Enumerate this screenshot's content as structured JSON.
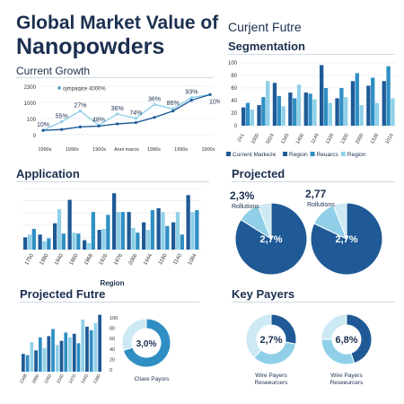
{
  "title_line1": "Global Market Value of",
  "title_line2": "Nanopowders",
  "colors": {
    "dark": "#1f5a96",
    "mid": "#2f8fc4",
    "light": "#8fd0e8",
    "pale": "#cde9f3",
    "text": "#1b2f4f"
  },
  "panels": {
    "current_growth": {
      "heading": "Current Growth"
    },
    "segmentation": {
      "super": "Curjent Futre",
      "heading": "Segmentation"
    },
    "application": {
      "heading": "Application"
    },
    "projected": {
      "heading": "Projected"
    },
    "projected_future": {
      "heading": "Projected Futre"
    },
    "key_payers": {
      "heading": "Key Payers"
    }
  },
  "chart_data": [
    {
      "id": "growth",
      "type": "line",
      "legend": "ojmpaqice 4000%",
      "yticks": [
        "2300",
        "1000",
        "100",
        "0"
      ],
      "xticks": [
        "1990s",
        "1990s",
        "1900s",
        "Anni maros",
        "1990s",
        "1990s",
        "1900s"
      ],
      "series": [
        {
          "values": [
            10,
            30,
            55,
            22,
            48,
            38,
            70,
            60,
            86,
            93
          ]
        },
        {
          "values": [
            10,
            12,
            18,
            20,
            25,
            28,
            40,
            55,
            80,
            93
          ]
        }
      ],
      "annotations": [
        "10%",
        "55%",
        "27%",
        "48%",
        "36%",
        "74%",
        "36%",
        "86%",
        "93%",
        "10%"
      ]
    },
    {
      "id": "segmentation",
      "type": "bar",
      "yticks": [
        "100",
        "80",
        "60",
        "40",
        "20",
        "0"
      ],
      "xticks": [
        "2X1",
        "1000",
        "5024",
        "1345",
        "1400",
        "1149",
        "1339",
        "1300",
        "2000",
        "1338",
        "1016"
      ],
      "legend": [
        "Current Markeze",
        "Region",
        "Reuarcs",
        "Region"
      ],
      "series": [
        {
          "values": [
            32,
            36,
            75,
            58,
            58,
            106,
            48,
            78,
            70,
            78
          ]
        },
        {
          "values": [
            40,
            50,
            52,
            48,
            56,
            66,
            66,
            92,
            84,
            104
          ]
        },
        {
          "values": [
            28,
            78,
            34,
            72,
            46,
            40,
            50,
            36,
            40,
            48
          ]
        }
      ]
    },
    {
      "id": "application",
      "type": "bar",
      "xticks": [
        "1750",
        "1980",
        "1940",
        "1860",
        "1968",
        "1926",
        "1976",
        "2066",
        "1444",
        "1180",
        "1140",
        "1084"
      ],
      "xlabel": "Region",
      "series": [
        {
          "values": [
            13,
            16,
            28,
            53,
            10,
            21,
            60,
            40,
            29,
            44,
            29,
            58
          ]
        },
        {
          "values": [
            16,
            9,
            43,
            18,
            7,
            22,
            40,
            23,
            21,
            40,
            40,
            40
          ]
        },
        {
          "values": [
            22,
            12,
            17,
            17,
            40,
            37,
            40,
            18,
            42,
            25,
            16,
            42
          ]
        }
      ]
    },
    {
      "id": "projected_pie1",
      "type": "pie",
      "label_top": "2,3%",
      "label_sub": "Rollutions",
      "center": "2,7%",
      "slices": [
        84,
        10,
        6
      ]
    },
    {
      "id": "projected_pie2",
      "type": "pie",
      "label_top": "2,77",
      "label_sub": "Rollutions",
      "center": "2,7%",
      "slices": [
        82,
        12,
        6
      ]
    },
    {
      "id": "projected_future_bars",
      "type": "bar",
      "yticks": [
        "100",
        "80",
        "60",
        "40",
        "20",
        "0"
      ],
      "xticks": [
        "1348",
        "1890",
        "1260",
        "1040",
        "1470",
        "1440",
        "1380"
      ],
      "values": [
        30,
        28,
        50,
        36,
        58,
        40,
        60,
        72,
        45,
        52,
        66,
        58,
        64,
        48,
        88,
        76,
        70,
        82,
        96
      ]
    },
    {
      "id": "projected_future_donut",
      "type": "pie",
      "center": "3,0%",
      "caption": "Cliare Payors",
      "slices": [
        70,
        30
      ]
    },
    {
      "id": "key_payers_donut1",
      "type": "pie",
      "center": "2,7%",
      "caption1": "Wire Payers",
      "caption2": "Reseeurcers",
      "slices": [
        28,
        34,
        38
      ]
    },
    {
      "id": "key_payers_donut2",
      "type": "pie",
      "center": "6,8%",
      "caption1": "Wire Payers",
      "caption2": "Reseeurcers",
      "slices": [
        45,
        30,
        25
      ]
    }
  ]
}
